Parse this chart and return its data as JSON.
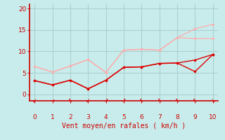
{
  "xlabel": "Vent moyen/en rafales ( km/h )",
  "x": [
    0,
    1,
    2,
    3,
    4,
    5,
    6,
    7,
    8,
    9,
    10
  ],
  "line_light_upper": [
    6.5,
    5.2,
    6.6,
    8.1,
    5.1,
    10.3,
    10.5,
    10.3,
    13.2,
    15.3,
    16.3
  ],
  "line_light_lower": [
    6.5,
    5.2,
    6.6,
    8.1,
    5.1,
    10.3,
    10.5,
    10.3,
    13.2,
    13.0,
    13.0
  ],
  "line_dark_upper": [
    3.2,
    2.2,
    3.3,
    1.3,
    3.3,
    6.3,
    6.4,
    7.2,
    7.3,
    5.3,
    9.3
  ],
  "line_dark_lower": [
    3.2,
    2.2,
    3.3,
    1.3,
    3.3,
    6.3,
    6.4,
    7.2,
    7.3,
    8.0,
    9.3
  ],
  "color_light": "#ffaaaa",
  "color_dark": "#dd0000",
  "bg_color": "#c8ecec",
  "grid_color": "#aad0d0",
  "axis_color": "#cc0000",
  "tick_color": "#cc0000",
  "label_color": "#cc0000",
  "ylim": [
    -1.5,
    21
  ],
  "xlim": [
    -0.3,
    10.3
  ],
  "yticks": [
    0,
    5,
    10,
    15,
    20
  ],
  "xticks": [
    0,
    1,
    2,
    3,
    4,
    5,
    6,
    7,
    8,
    9,
    10
  ],
  "arrow_chars": [
    "↙",
    "→",
    "↖",
    "↙",
    "↗",
    "↗",
    "↖",
    "↖",
    "↖",
    "↖",
    "↘"
  ]
}
